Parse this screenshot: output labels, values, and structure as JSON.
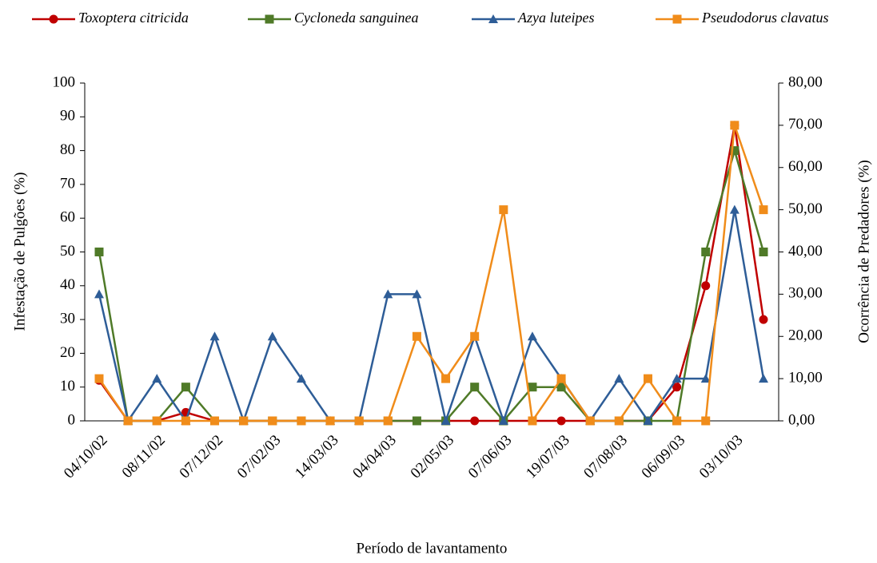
{
  "chart_data": {
    "type": "line",
    "x_label": "Período de lavantamento",
    "y_label": "Infestação  de Pulgões (%)",
    "y2_label": "Ocorrência de Predadores (%)",
    "categories": [
      "04/10/02",
      null,
      "08/11/02",
      null,
      "07/12/02",
      null,
      "07/02/03",
      null,
      "14/03/03",
      null,
      "04/04/03",
      null,
      "02/05/03",
      null,
      "07/06/03",
      null,
      "19/07/03",
      null,
      "07/08/03",
      null,
      "06/09/03",
      null,
      "03/10/03",
      null
    ],
    "ylim": [
      0,
      100
    ],
    "yticks": [
      0,
      10,
      20,
      30,
      40,
      50,
      60,
      70,
      80,
      90,
      100
    ],
    "y2lim": [
      0,
      80
    ],
    "y2ticks": [
      {
        "value": 0,
        "label": "0,00"
      },
      {
        "value": 10,
        "label": "10,00"
      },
      {
        "value": 20,
        "label": "20,00"
      },
      {
        "value": 30,
        "label": "30,00"
      },
      {
        "value": 40,
        "label": "40,00"
      },
      {
        "value": 50,
        "label": "50,00"
      },
      {
        "value": 60,
        "label": "60,00"
      },
      {
        "value": 70,
        "label": "70,00"
      },
      {
        "value": 80,
        "label": "80,00"
      }
    ],
    "series": [
      {
        "name": "Toxoptera citricida",
        "color": "#c00000",
        "marker": "circle",
        "values": [
          12,
          0,
          0,
          2.5,
          0,
          0,
          0,
          0,
          0,
          0,
          0,
          0,
          0,
          0,
          0,
          0,
          0,
          0,
          0,
          0,
          10,
          40,
          87.5,
          30
        ]
      },
      {
        "name": "Cycloneda sanguinea",
        "color": "#4f7a28",
        "marker": "square",
        "axis": "y2",
        "values": [
          40,
          0,
          0,
          8,
          0,
          0,
          0,
          0,
          0,
          0,
          0,
          0,
          0,
          8,
          0,
          8,
          8,
          0,
          0,
          0,
          0,
          40,
          64,
          40
        ]
      },
      {
        "name": "Azya luteipes",
        "color": "#2e5d97",
        "marker": "triangle",
        "axis": "y2",
        "values": [
          30,
          0,
          10,
          0,
          20,
          0,
          20,
          10,
          0,
          0,
          30,
          30,
          0,
          20,
          0,
          20,
          10,
          0,
          10,
          0,
          10,
          10,
          50,
          10
        ]
      },
      {
        "name": "Pseudodorus clavatus",
        "color": "#f08c1a",
        "marker": "square",
        "axis": "y2",
        "values": [
          10,
          0,
          0,
          0,
          0,
          0,
          0,
          0,
          0,
          0,
          0,
          20,
          10,
          20,
          50,
          0,
          10,
          0,
          0,
          10,
          0,
          0,
          70,
          50
        ]
      }
    ]
  }
}
